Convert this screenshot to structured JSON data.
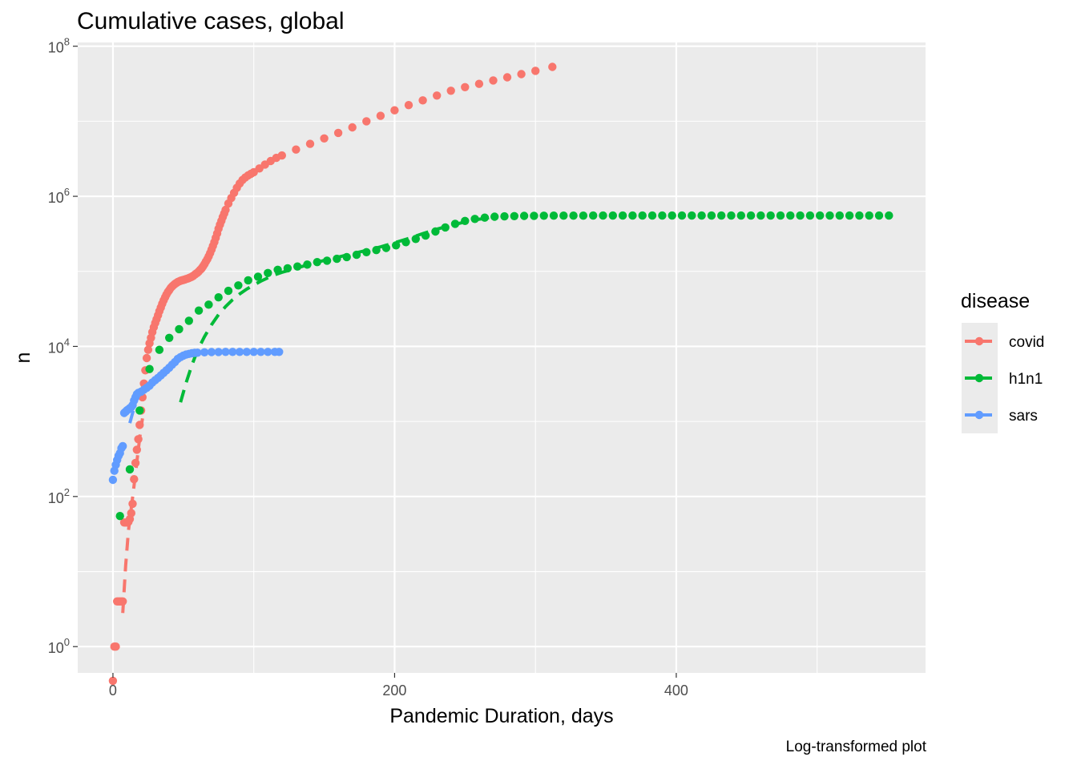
{
  "chart_data": {
    "type": "scatter",
    "title": "Cumulative cases, global",
    "xlabel": "Pandemic Duration, days",
    "ylabel": "n",
    "caption": "Log-transformed plot",
    "xlim": [
      -25,
      577
    ],
    "ylim_log10": [
      -0.35,
      8.05
    ],
    "y_scale": "log10",
    "x_ticks": [
      0,
      200,
      400
    ],
    "y_ticks": [
      {
        "base": "10",
        "exp": "0"
      },
      {
        "base": "10",
        "exp": "2"
      },
      {
        "base": "10",
        "exp": "4"
      },
      {
        "base": "10",
        "exp": "6"
      },
      {
        "base": "10",
        "exp": "8"
      }
    ],
    "grid": true,
    "legend": {
      "title": "disease",
      "position": "right",
      "items": [
        {
          "label": "covid",
          "color": "#F8766D"
        },
        {
          "label": "h1n1",
          "color": "#00BA38"
        },
        {
          "label": "sars",
          "color": "#619CFF"
        }
      ]
    },
    "series": [
      {
        "name": "covid",
        "color": "#F8766D",
        "points": [
          [
            0,
            0.35
          ],
          [
            1,
            1
          ],
          [
            2,
            1
          ],
          [
            3,
            4
          ],
          [
            4,
            4
          ],
          [
            5,
            4
          ],
          [
            6,
            4
          ],
          [
            7,
            4
          ],
          [
            8,
            45
          ],
          [
            9,
            45
          ],
          [
            10,
            45
          ],
          [
            11,
            46
          ],
          [
            12,
            50
          ],
          [
            13,
            60
          ],
          [
            14,
            80
          ],
          [
            15,
            170
          ],
          [
            16,
            280
          ],
          [
            17,
            420
          ],
          [
            18,
            580
          ],
          [
            19,
            900
          ],
          [
            20,
            1400
          ],
          [
            21,
            2100
          ],
          [
            22,
            3200
          ],
          [
            23,
            4800
          ],
          [
            24,
            7000
          ],
          [
            25,
            9000
          ],
          [
            26,
            11000
          ],
          [
            27,
            13000
          ],
          [
            28,
            15500
          ],
          [
            29,
            18000
          ],
          [
            30,
            20500
          ],
          [
            31,
            23000
          ],
          [
            32,
            26000
          ],
          [
            33,
            29500
          ],
          [
            34,
            33000
          ],
          [
            35,
            37000
          ],
          [
            36,
            41000
          ],
          [
            37,
            45000
          ],
          [
            38,
            49000
          ],
          [
            39,
            53000
          ],
          [
            40,
            56000
          ],
          [
            41,
            60000
          ],
          [
            42,
            63000
          ],
          [
            43,
            65500
          ],
          [
            44,
            68000
          ],
          [
            45,
            70000
          ],
          [
            46,
            72000
          ],
          [
            47,
            73500
          ],
          [
            48,
            75000
          ],
          [
            49,
            76000
          ],
          [
            50,
            77000
          ],
          [
            51,
            78000
          ],
          [
            52,
            79000
          ],
          [
            53,
            80000
          ],
          [
            54,
            81500
          ],
          [
            55,
            83000
          ],
          [
            56,
            85000
          ],
          [
            57,
            87000
          ],
          [
            58,
            90000
          ],
          [
            59,
            93000
          ],
          [
            60,
            96000
          ],
          [
            61,
            100000
          ],
          [
            62,
            105000
          ],
          [
            63,
            110000
          ],
          [
            64,
            117000
          ],
          [
            65,
            125000
          ],
          [
            66,
            135000
          ],
          [
            67,
            145000
          ],
          [
            68,
            158000
          ],
          [
            69,
            175000
          ],
          [
            70,
            195000
          ],
          [
            71,
            218000
          ],
          [
            72,
            245000
          ],
          [
            73,
            280000
          ],
          [
            74,
            320000
          ],
          [
            75,
            370000
          ],
          [
            76,
            420000
          ],
          [
            77,
            470000
          ],
          [
            78,
            530000
          ],
          [
            79,
            590000
          ],
          [
            80,
            660000
          ],
          [
            82,
            800000
          ],
          [
            84,
            950000
          ],
          [
            86,
            1110000
          ],
          [
            88,
            1300000
          ],
          [
            90,
            1480000
          ],
          [
            92,
            1650000
          ],
          [
            94,
            1780000
          ],
          [
            96,
            1900000
          ],
          [
            98,
            2000000
          ],
          [
            100,
            2100000
          ],
          [
            104,
            2350000
          ],
          [
            108,
            2650000
          ],
          [
            112,
            2950000
          ],
          [
            116,
            3250000
          ],
          [
            120,
            3500000
          ],
          [
            130,
            4200000
          ],
          [
            140,
            5000000
          ],
          [
            150,
            5900000
          ],
          [
            160,
            7000000
          ],
          [
            170,
            8300000
          ],
          [
            180,
            10000000
          ],
          [
            190,
            11800000
          ],
          [
            200,
            14000000
          ],
          [
            210,
            16400000
          ],
          [
            220,
            19000000
          ],
          [
            230,
            22000000
          ],
          [
            240,
            25500000
          ],
          [
            250,
            28500000
          ],
          [
            260,
            31500000
          ],
          [
            270,
            35000000
          ],
          [
            280,
            38500000
          ],
          [
            290,
            42500000
          ],
          [
            300,
            47000000
          ],
          [
            312,
            53000000
          ]
        ]
      },
      {
        "name": "h1n1",
        "color": "#00BA38",
        "points": [
          [
            5,
            55
          ],
          [
            12,
            230
          ],
          [
            19,
            1400
          ],
          [
            26,
            5000
          ],
          [
            33,
            9000
          ],
          [
            40,
            13000
          ],
          [
            47,
            17000
          ],
          [
            54,
            22000
          ],
          [
            61,
            30000
          ],
          [
            68,
            36000
          ],
          [
            75,
            45000
          ],
          [
            82,
            55000
          ],
          [
            89,
            65000
          ],
          [
            96,
            76000
          ],
          [
            103,
            85000
          ],
          [
            110,
            95000
          ],
          [
            117,
            105000
          ],
          [
            124,
            110000
          ],
          [
            131,
            116000
          ],
          [
            138,
            123000
          ],
          [
            145,
            133000
          ],
          [
            152,
            139000
          ],
          [
            159,
            147000
          ],
          [
            166,
            155000
          ],
          [
            173,
            166000
          ],
          [
            180,
            180000
          ],
          [
            187,
            192000
          ],
          [
            194,
            205000
          ],
          [
            201,
            222000
          ],
          [
            208,
            245000
          ],
          [
            215,
            270000
          ],
          [
            222,
            300000
          ],
          [
            229,
            340000
          ],
          [
            236,
            385000
          ],
          [
            243,
            430000
          ],
          [
            250,
            470000
          ],
          [
            257,
            500000
          ],
          [
            264,
            520000
          ],
          [
            271,
            535000
          ],
          [
            278,
            540000
          ],
          [
            285,
            545000
          ],
          [
            292,
            548000
          ],
          [
            299,
            550000
          ],
          [
            306,
            551000
          ],
          [
            313,
            552000
          ],
          [
            320,
            552500
          ],
          [
            327,
            553000
          ],
          [
            334,
            553000
          ],
          [
            341,
            553500
          ],
          [
            348,
            553500
          ],
          [
            355,
            554000
          ],
          [
            362,
            554000
          ],
          [
            369,
            554000
          ],
          [
            376,
            554000
          ],
          [
            383,
            554000
          ],
          [
            390,
            554500
          ],
          [
            397,
            554500
          ],
          [
            404,
            554500
          ],
          [
            411,
            554500
          ],
          [
            418,
            554500
          ],
          [
            425,
            554500
          ],
          [
            432,
            554500
          ],
          [
            439,
            554500
          ],
          [
            446,
            554500
          ],
          [
            453,
            554500
          ],
          [
            460,
            554500
          ],
          [
            467,
            554500
          ],
          [
            474,
            554500
          ],
          [
            481,
            554500
          ],
          [
            488,
            554500
          ],
          [
            495,
            554500
          ],
          [
            502,
            554500
          ],
          [
            509,
            554500
          ],
          [
            516,
            554500
          ],
          [
            523,
            554500
          ],
          [
            530,
            554500
          ],
          [
            537,
            554500
          ],
          [
            544,
            554500
          ],
          [
            551,
            554500
          ]
        ]
      },
      {
        "name": "sars",
        "color": "#619CFF",
        "points": [
          [
            0,
            167
          ],
          [
            1,
            220
          ],
          [
            2,
            264
          ],
          [
            3,
            306
          ],
          [
            4,
            350
          ],
          [
            5,
            378
          ],
          [
            6,
            440
          ],
          [
            7,
            470
          ],
          [
            8,
            1300
          ],
          [
            9,
            1350
          ],
          [
            10,
            1410
          ],
          [
            11,
            1450
          ],
          [
            12,
            1500
          ],
          [
            13,
            1550
          ],
          [
            14,
            1650
          ],
          [
            15,
            1900
          ],
          [
            16,
            2100
          ],
          [
            17,
            2300
          ],
          [
            18,
            2400
          ],
          [
            20,
            2500
          ],
          [
            22,
            2650
          ],
          [
            24,
            2800
          ],
          [
            26,
            3000
          ],
          [
            28,
            3300
          ],
          [
            30,
            3550
          ],
          [
            32,
            3800
          ],
          [
            34,
            4100
          ],
          [
            36,
            4450
          ],
          [
            38,
            4800
          ],
          [
            40,
            5200
          ],
          [
            42,
            5700
          ],
          [
            44,
            6200
          ],
          [
            46,
            6800
          ],
          [
            48,
            7200
          ],
          [
            50,
            7550
          ],
          [
            52,
            7800
          ],
          [
            54,
            7950
          ],
          [
            56,
            8100
          ],
          [
            58,
            8200
          ],
          [
            60,
            8250
          ],
          [
            65,
            8350
          ],
          [
            70,
            8400
          ],
          [
            75,
            8430
          ],
          [
            80,
            8440
          ],
          [
            85,
            8450
          ],
          [
            90,
            8450
          ],
          [
            95,
            8460
          ],
          [
            100,
            8460
          ],
          [
            105,
            8460
          ],
          [
            110,
            8460
          ],
          [
            115,
            8460
          ],
          [
            118,
            8460
          ]
        ]
      }
    ],
    "fits": [
      {
        "name": "covid",
        "color": "#F8766D",
        "points": [
          [
            7,
            2.8
          ],
          [
            9,
            12
          ],
          [
            11,
            35
          ],
          [
            13,
            70
          ],
          [
            15,
            140
          ],
          [
            17,
            290
          ],
          [
            19,
            600
          ],
          [
            21,
            1100
          ]
        ]
      },
      {
        "name": "h1n1",
        "color": "#00BA38",
        "points": [
          [
            48,
            1800
          ],
          [
            52,
            3300
          ],
          [
            56,
            5600
          ],
          [
            60,
            8800
          ],
          [
            65,
            13500
          ],
          [
            70,
            19500
          ],
          [
            75,
            26500
          ],
          [
            80,
            34000
          ],
          [
            85,
            42000
          ],
          [
            90,
            50000
          ],
          [
            95,
            58000
          ],
          [
            100,
            66000
          ],
          [
            105,
            74000
          ],
          [
            110,
            82000
          ],
          [
            115,
            90000
          ],
          [
            120,
            97000
          ],
          [
            130,
            110000
          ],
          [
            140,
            125000
          ],
          [
            150,
            140000
          ],
          [
            160,
            155000
          ],
          [
            170,
            172000
          ],
          [
            180,
            190000
          ],
          [
            190,
            212000
          ],
          [
            200,
            240000
          ],
          [
            210,
            275000
          ],
          [
            220,
            318000
          ],
          [
            230,
            365000
          ],
          [
            240,
            410000
          ],
          [
            250,
            455000
          ],
          [
            260,
            495000
          ],
          [
            270,
            530000
          ]
        ]
      },
      {
        "name": "sars",
        "color": "#619CFF",
        "points": [
          [
            12,
            950
          ],
          [
            14,
            1300
          ],
          [
            16,
            1700
          ]
        ]
      }
    ]
  }
}
